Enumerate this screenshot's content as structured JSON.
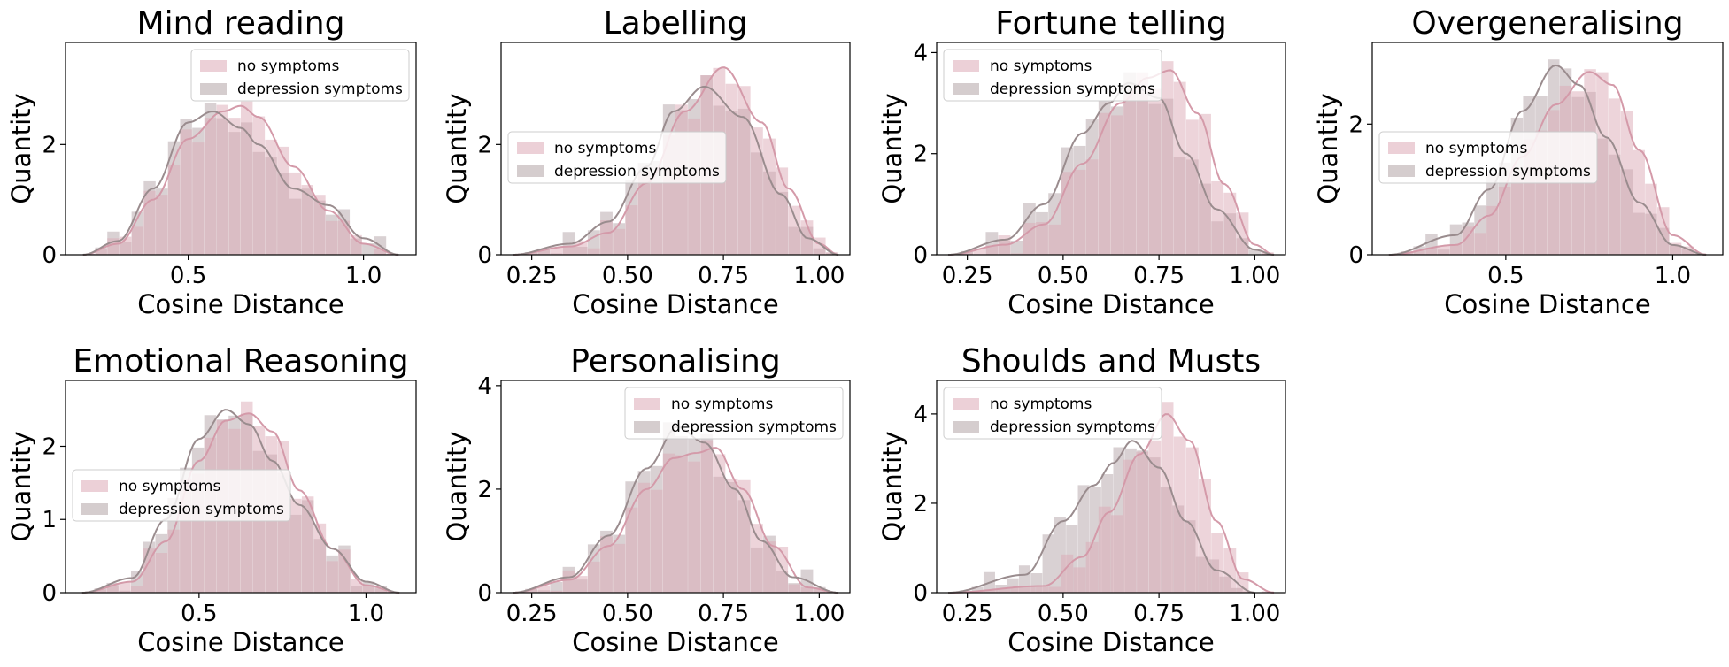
{
  "legend_labels": [
    "no symptoms",
    "depression symptoms"
  ],
  "colors": {
    "no_symptoms_fill": "#dcaab6",
    "no_symptoms_line": "#d49aa9",
    "depression_fill": "#b9acae",
    "depression_line": "#9a8c8e",
    "axis": "#000000"
  },
  "chart_data": [
    {
      "type": "histogram",
      "title": "Mind reading",
      "xlabel": "Cosine Distance",
      "ylabel": "Quantity",
      "xlim": [
        0.15,
        1.15
      ],
      "ylim": [
        0,
        3.85
      ],
      "xticks": [
        0.5,
        1.0
      ],
      "xtick_labels": [
        "0.5",
        "1.0"
      ],
      "yticks": [
        0,
        2
      ],
      "ytick_labels": [
        "0",
        "2"
      ],
      "legend_position": "upper right",
      "series": [
        {
          "name": "no symptoms",
          "peak_x": 0.65,
          "peak_y": 2.7,
          "x": [
            0.2,
            0.3,
            0.4,
            0.5,
            0.6,
            0.65,
            0.7,
            0.8,
            0.9,
            1.0,
            1.1
          ],
          "y": [
            0.0,
            0.2,
            1.0,
            2.1,
            2.6,
            2.7,
            2.5,
            1.6,
            0.8,
            0.2,
            0.0
          ]
        },
        {
          "name": "depression symptoms",
          "peak_x": 0.57,
          "peak_y": 2.6,
          "x": [
            0.2,
            0.3,
            0.4,
            0.5,
            0.57,
            0.65,
            0.7,
            0.8,
            0.9,
            1.0,
            1.1
          ],
          "y": [
            0.0,
            0.25,
            1.2,
            2.4,
            2.6,
            2.3,
            2.0,
            1.2,
            0.9,
            0.3,
            0.0
          ]
        }
      ]
    },
    {
      "type": "histogram",
      "title": "Labelling",
      "xlabel": "Cosine Distance",
      "ylabel": "Quantity",
      "xlim": [
        0.17,
        1.08
      ],
      "ylim": [
        0,
        3.85
      ],
      "xticks": [
        0.25,
        0.5,
        0.75,
        1.0
      ],
      "xtick_labels": [
        "0.25",
        "0.50",
        "0.75",
        "1.00"
      ],
      "yticks": [
        0,
        2
      ],
      "ytick_labels": [
        "0",
        "2"
      ],
      "legend_position": "center left",
      "series": [
        {
          "name": "no symptoms",
          "peak_x": 0.75,
          "peak_y": 3.4,
          "x": [
            0.2,
            0.35,
            0.45,
            0.55,
            0.65,
            0.75,
            0.85,
            0.92,
            1.0,
            1.05
          ],
          "y": [
            0.0,
            0.15,
            0.4,
            1.3,
            2.6,
            3.4,
            2.4,
            1.2,
            0.2,
            0.0
          ]
        },
        {
          "name": "depression symptoms",
          "peak_x": 0.7,
          "peak_y": 3.05,
          "x": [
            0.2,
            0.35,
            0.45,
            0.55,
            0.62,
            0.7,
            0.8,
            0.9,
            0.97,
            1.05
          ],
          "y": [
            0.0,
            0.2,
            0.6,
            1.6,
            2.6,
            3.05,
            2.5,
            1.1,
            0.3,
            0.0
          ]
        }
      ]
    },
    {
      "type": "histogram",
      "title": "Fortune telling",
      "xlabel": "Cosine Distance",
      "ylabel": "Quantity",
      "xlim": [
        0.17,
        1.08
      ],
      "ylim": [
        0,
        4.2
      ],
      "xticks": [
        0.25,
        0.5,
        0.75,
        1.0
      ],
      "xtick_labels": [
        "0.25",
        "0.50",
        "0.75",
        "1.00"
      ],
      "yticks": [
        0,
        2,
        4
      ],
      "ytick_labels": [
        "0",
        "2",
        "4"
      ],
      "legend_position": "upper left",
      "series": [
        {
          "name": "no symptoms",
          "peak_x": 0.78,
          "peak_y": 3.65,
          "x": [
            0.2,
            0.35,
            0.45,
            0.55,
            0.65,
            0.72,
            0.78,
            0.85,
            0.92,
            1.0,
            1.05
          ],
          "y": [
            0.0,
            0.2,
            0.6,
            1.8,
            3.0,
            3.5,
            3.65,
            2.8,
            1.4,
            0.2,
            0.0
          ]
        },
        {
          "name": "depression symptoms",
          "peak_x": 0.67,
          "peak_y": 3.4,
          "x": [
            0.2,
            0.35,
            0.45,
            0.55,
            0.62,
            0.67,
            0.75,
            0.82,
            0.9,
            1.0,
            1.05
          ],
          "y": [
            0.0,
            0.3,
            1.0,
            2.4,
            3.0,
            3.4,
            3.1,
            2.0,
            0.9,
            0.1,
            0.0
          ]
        }
      ]
    },
    {
      "type": "histogram",
      "title": "Overgeneralising",
      "xlabel": "Cosine Distance",
      "ylabel": "Quantity",
      "xlim": [
        0.1,
        1.15
      ],
      "ylim": [
        0,
        3.25
      ],
      "xticks": [
        0.5,
        1.0
      ],
      "xtick_labels": [
        "0.5",
        "1.0"
      ],
      "yticks": [
        0,
        2
      ],
      "ytick_labels": [
        "0",
        "2"
      ],
      "legend_position": "center left",
      "series": [
        {
          "name": "no symptoms",
          "peak_x": 0.75,
          "peak_y": 2.8,
          "x": [
            0.15,
            0.35,
            0.45,
            0.55,
            0.65,
            0.75,
            0.82,
            0.9,
            1.0,
            1.1
          ],
          "y": [
            0.0,
            0.15,
            0.6,
            1.5,
            2.3,
            2.8,
            2.6,
            1.6,
            0.3,
            0.0
          ]
        },
        {
          "name": "depression symptoms",
          "peak_x": 0.65,
          "peak_y": 2.9,
          "x": [
            0.15,
            0.35,
            0.45,
            0.55,
            0.65,
            0.72,
            0.8,
            0.9,
            1.0,
            1.1
          ],
          "y": [
            0.0,
            0.3,
            1.0,
            2.2,
            2.9,
            2.6,
            1.8,
            0.8,
            0.15,
            0.0
          ]
        }
      ]
    },
    {
      "type": "histogram",
      "title": "Emotional Reasoning",
      "xlabel": "Cosine Distance",
      "ylabel": "Quantity",
      "xlim": [
        0.1,
        1.15
      ],
      "ylim": [
        0,
        2.9
      ],
      "xticks": [
        0.5,
        1.0
      ],
      "xtick_labels": [
        "0.5",
        "1.0"
      ],
      "yticks": [
        0,
        1,
        2
      ],
      "ytick_labels": [
        "0",
        "1",
        "2"
      ],
      "legend_position": "center left",
      "series": [
        {
          "name": "no symptoms",
          "peak_x": 0.65,
          "peak_y": 2.45,
          "x": [
            0.15,
            0.3,
            0.4,
            0.5,
            0.58,
            0.65,
            0.72,
            0.8,
            0.9,
            1.0,
            1.1
          ],
          "y": [
            0.0,
            0.15,
            0.7,
            1.8,
            2.35,
            2.45,
            2.2,
            1.4,
            0.6,
            0.1,
            0.0
          ]
        },
        {
          "name": "depression symptoms",
          "peak_x": 0.58,
          "peak_y": 2.5,
          "x": [
            0.15,
            0.3,
            0.4,
            0.5,
            0.58,
            0.65,
            0.72,
            0.8,
            0.9,
            1.0,
            1.1
          ],
          "y": [
            0.0,
            0.2,
            1.0,
            2.1,
            2.5,
            2.3,
            1.8,
            1.2,
            0.6,
            0.15,
            0.0
          ]
        }
      ]
    },
    {
      "type": "histogram",
      "title": "Personalising",
      "xlabel": "Cosine Distance",
      "ylabel": "Quantity",
      "xlim": [
        0.17,
        1.08
      ],
      "ylim": [
        0,
        4.1
      ],
      "xticks": [
        0.25,
        0.5,
        0.75,
        1.0
      ],
      "xtick_labels": [
        "0.25",
        "0.50",
        "0.75",
        "1.00"
      ],
      "yticks": [
        0,
        2,
        4
      ],
      "ytick_labels": [
        "0",
        "2",
        "4"
      ],
      "legend_position": "upper right",
      "series": [
        {
          "name": "no symptoms",
          "peak_x": 0.73,
          "peak_y": 2.8,
          "x": [
            0.2,
            0.35,
            0.45,
            0.55,
            0.62,
            0.68,
            0.73,
            0.8,
            0.88,
            0.97,
            1.05
          ],
          "y": [
            0.0,
            0.25,
            0.9,
            2.0,
            2.6,
            2.7,
            2.8,
            2.0,
            0.9,
            0.1,
            0.0
          ]
        },
        {
          "name": "depression symptoms",
          "peak_x": 0.63,
          "peak_y": 3.2,
          "x": [
            0.2,
            0.35,
            0.45,
            0.55,
            0.63,
            0.7,
            0.78,
            0.85,
            0.93,
            1.05
          ],
          "y": [
            0.0,
            0.3,
            1.1,
            2.4,
            3.2,
            2.9,
            2.0,
            1.0,
            0.3,
            0.0
          ]
        }
      ]
    },
    {
      "type": "histogram",
      "title": "Shoulds and Musts",
      "xlabel": "Cosine Distance",
      "ylabel": "Quantity",
      "xlim": [
        0.17,
        1.08
      ],
      "ylim": [
        0,
        4.75
      ],
      "xticks": [
        0.25,
        0.5,
        0.75,
        1.0
      ],
      "xtick_labels": [
        "0.25",
        "0.50",
        "0.75",
        "1.00"
      ],
      "yticks": [
        0,
        2,
        4
      ],
      "ytick_labels": [
        "0",
        "2",
        "4"
      ],
      "legend_position": "upper left",
      "series": [
        {
          "name": "no symptoms",
          "peak_x": 0.77,
          "peak_y": 4.0,
          "x": [
            0.2,
            0.45,
            0.55,
            0.62,
            0.7,
            0.77,
            0.83,
            0.9,
            0.97,
            1.05
          ],
          "y": [
            0.0,
            0.15,
            0.8,
            1.8,
            3.1,
            4.0,
            3.4,
            1.6,
            0.3,
            0.0
          ]
        },
        {
          "name": "depression symptoms",
          "peak_x": 0.68,
          "peak_y": 3.4,
          "x": [
            0.2,
            0.4,
            0.5,
            0.58,
            0.63,
            0.68,
            0.75,
            0.82,
            0.9,
            1.0
          ],
          "y": [
            0.0,
            0.4,
            1.6,
            2.4,
            2.9,
            3.4,
            2.8,
            1.6,
            0.5,
            0.0
          ]
        }
      ]
    }
  ]
}
